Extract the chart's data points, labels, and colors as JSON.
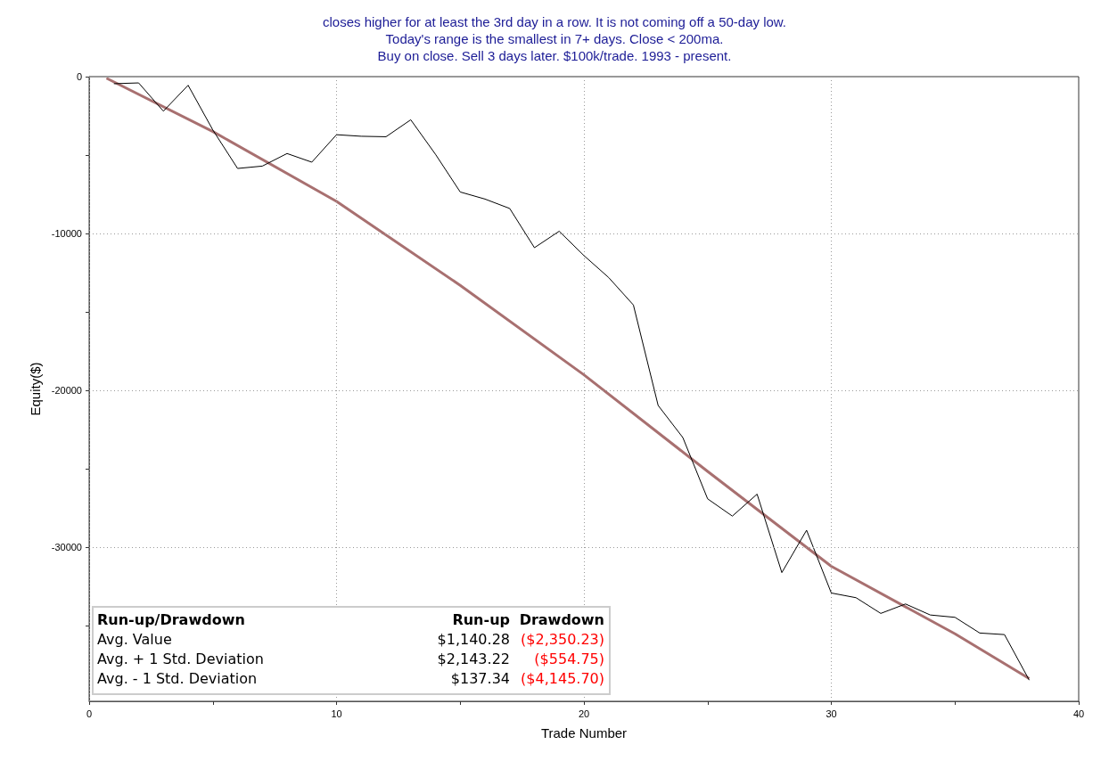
{
  "chart_data": {
    "type": "line",
    "title": "closes higher for at least the 3rd day in a row. It is not coming off a 50-day low.\nToday's range is the smallest in 7+ days. Close < 200ma.\nBuy on close. Sell 3 days later. $100k/trade. 1993 - present.",
    "xlabel": "Trade Number",
    "ylabel": "Equity($)",
    "xlim": [
      0,
      40
    ],
    "ylim": [
      -39800,
      0
    ],
    "xticks": [
      0,
      {
        "value": 5,
        "label": null
      },
      10,
      {
        "value": 15,
        "label": null
      },
      20,
      {
        "value": 25,
        "label": null
      },
      30,
      {
        "value": 35,
        "label": null
      },
      40
    ],
    "yticks": [
      {
        "value": -35000,
        "label": null
      },
      -30000,
      {
        "value": -25000,
        "label": null
      },
      -20000,
      {
        "value": -15000,
        "label": null
      },
      -10000,
      {
        "value": -5000,
        "label": null
      },
      0
    ],
    "grid": true,
    "marker": "none",
    "line_style": "solid",
    "series": [
      {
        "color": "#000000",
        "x": [
          1,
          2,
          3,
          4,
          5,
          6,
          7,
          8,
          9,
          10,
          11,
          12,
          13,
          14,
          15,
          16,
          17,
          18,
          19,
          20,
          21,
          22,
          23,
          24,
          25,
          26,
          27,
          28,
          29,
          30,
          31,
          32,
          33,
          34,
          35,
          36,
          37,
          38
        ],
        "values": [
          -450,
          -400,
          -2200,
          -550,
          -3400,
          -5850,
          -5700,
          -4900,
          -5450,
          -3700,
          -3800,
          -3830,
          -2750,
          -4950,
          -7350,
          -7800,
          -8400,
          -10900,
          -9850,
          -11400,
          -12800,
          -14550,
          -20950,
          -23000,
          -26900,
          -28000,
          -26600,
          -31600,
          -28900,
          -32900,
          -33200,
          -34200,
          -33600,
          -34300,
          -34450,
          -35450,
          -35550,
          -38450
        ]
      },
      {
        "color": "#a87070",
        "x": [
          0.7,
          5,
          10,
          15,
          20,
          25,
          30,
          35,
          38
        ],
        "values": [
          -100,
          -3500,
          -7950,
          -13300,
          -19000,
          -25150,
          -31200,
          -35500,
          -38350
        ]
      }
    ],
    "annotations": [
      "Run-up/Drawdown",
      "Run-up",
      "Drawdown",
      "Avg. Value",
      "$1,140.28",
      "($2,350.23)",
      "Avg. + 1 Std. Deviation",
      "$2,143.22",
      "($554.75)",
      "Avg. - 1 Std. Deviation",
      "$137.34",
      "($4,145.70)"
    ]
  }
}
